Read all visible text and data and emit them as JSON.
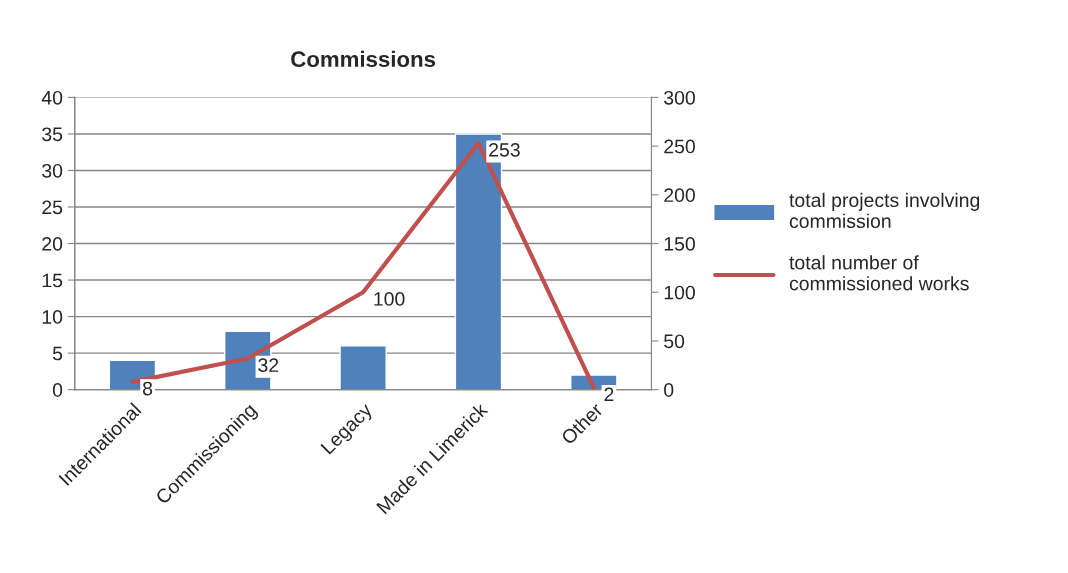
{
  "chart_data": {
    "type": "bar",
    "title": "Commissions",
    "categories": [
      "International",
      "Commissioning",
      "Legacy",
      "Made in Limerick",
      "Other"
    ],
    "series": [
      {
        "name": "total projects involving commission",
        "color": "#4f81bd",
        "values": [
          4,
          8,
          6,
          35,
          2
        ]
      },
      {
        "name": "total number of commissioned works",
        "type": "line",
        "axis": "y2",
        "color": "#c0504d",
        "values": [
          8,
          32,
          100,
          253,
          2
        ],
        "value_labels": [
          "8",
          "32",
          "100",
          "253",
          "2"
        ]
      }
    ],
    "ylim": [
      0,
      40
    ],
    "yticks": [
      0,
      5,
      10,
      15,
      20,
      25,
      30,
      35,
      40
    ],
    "y2lim": [
      0,
      300
    ],
    "y2ticks": [
      0,
      50,
      100,
      150,
      200,
      250,
      300
    ],
    "grid": "y",
    "legend": "right",
    "marker": "none",
    "line_style": "solid"
  }
}
